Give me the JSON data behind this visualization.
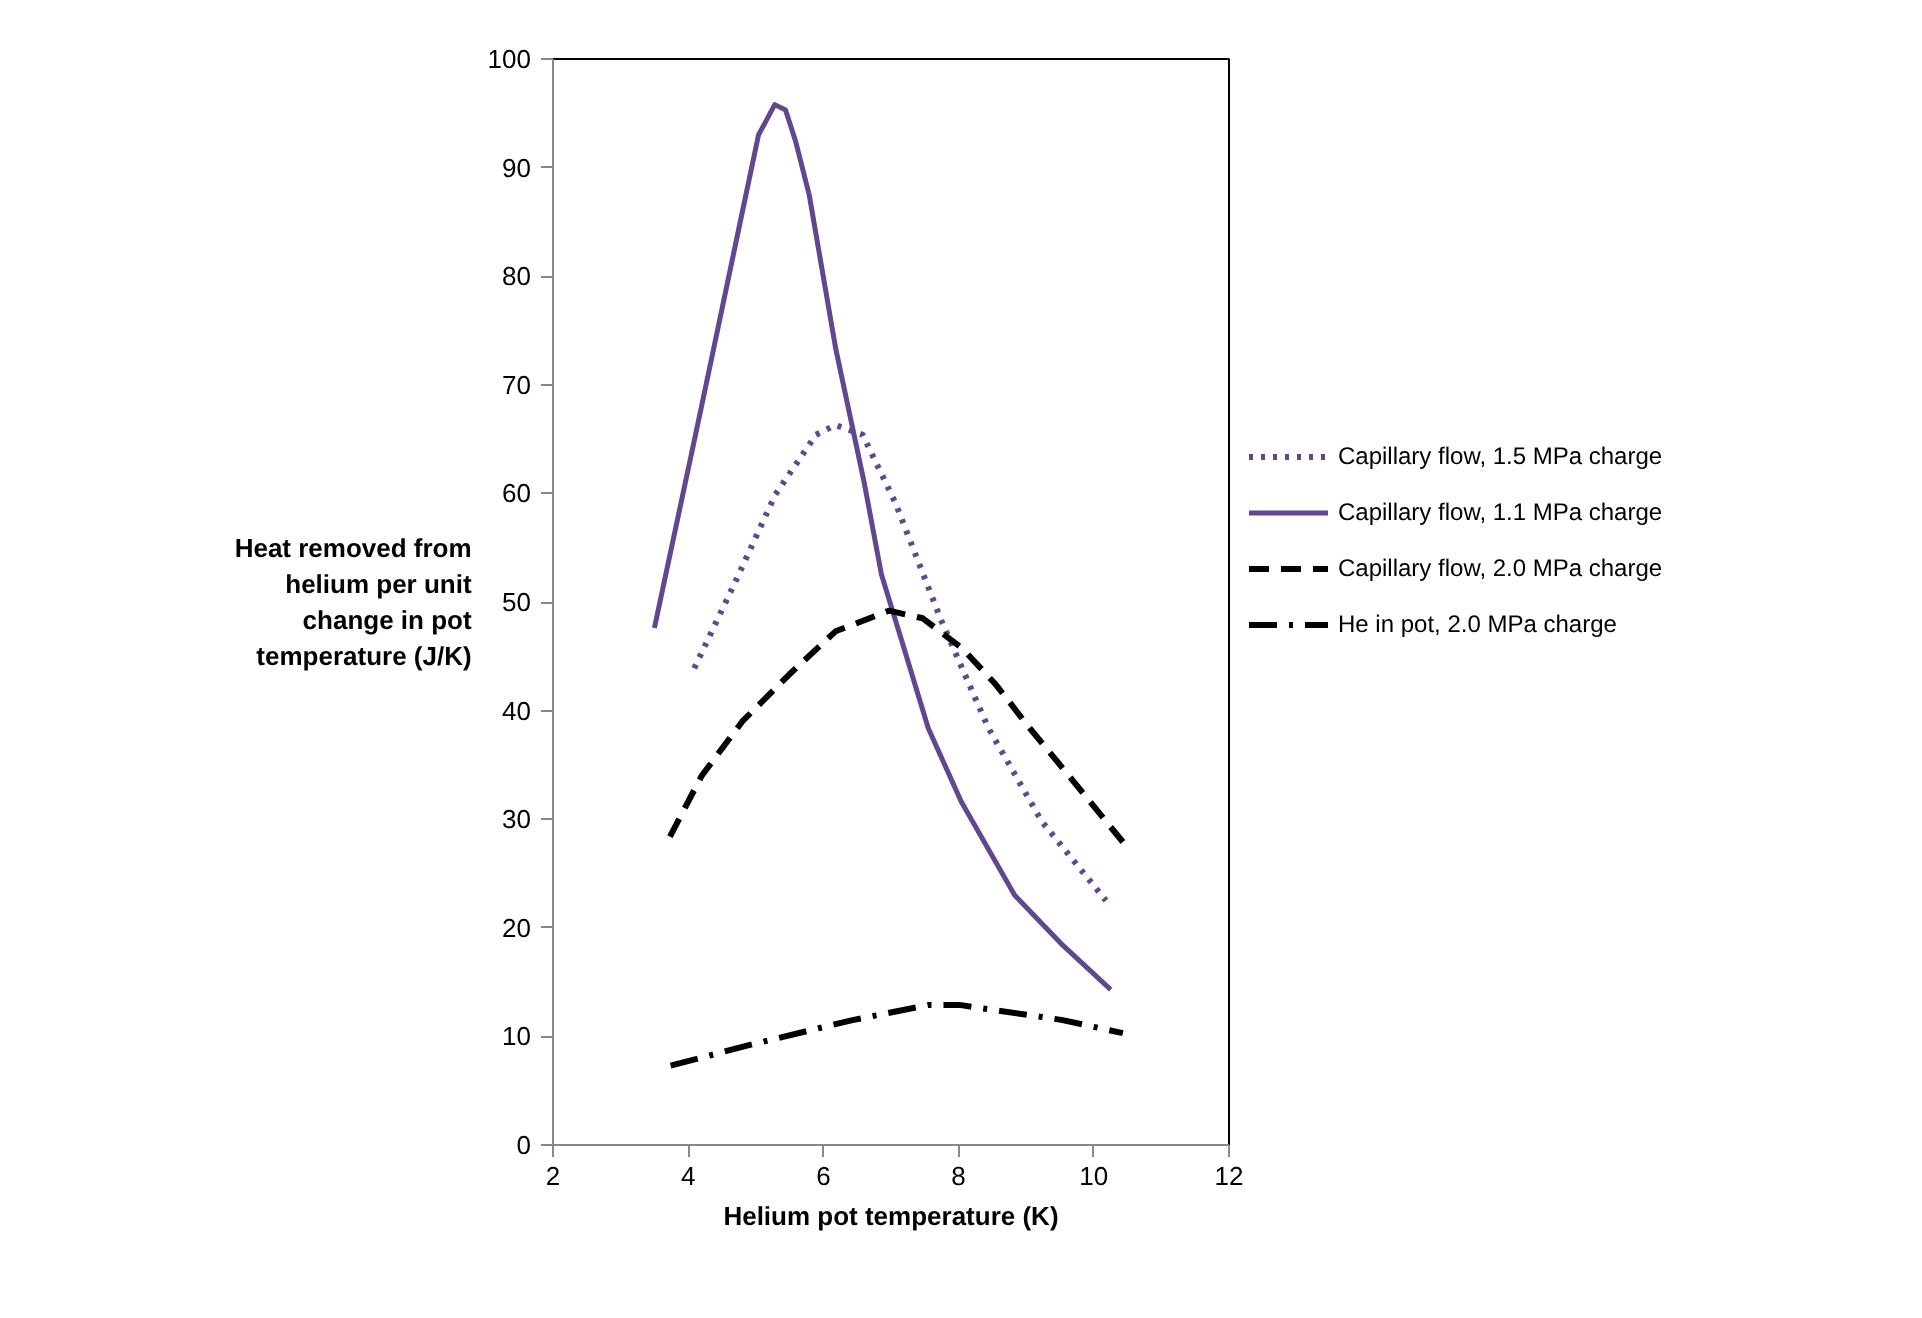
{
  "chart_data": {
    "type": "line",
    "xlabel": "Helium pot temperature (K)",
    "ylabel": "Heat removed from helium per unit change in pot temperature (J/K)",
    "xlim": [
      2,
      12
    ],
    "xticks": [
      2,
      4,
      6,
      8,
      10,
      12
    ],
    "ylim": [
      0,
      100
    ],
    "yticks": [
      0,
      10,
      20,
      30,
      40,
      50,
      60,
      70,
      80,
      90,
      100
    ],
    "grid": false,
    "legend": "right",
    "marker": "none",
    "series": [
      {
        "name": "Capillary flow, 1.5 MPa charge",
        "color": "#60478f",
        "line_style": "dotted",
        "x": [
          4.09,
          4.7,
          5.29,
          5.89,
          6.18,
          6.58,
          7.06,
          7.75,
          8.44,
          9.23,
          10.18
        ],
        "values": [
          43.9,
          51.9,
          59.9,
          65.4,
          66.3,
          65.4,
          59.2,
          48.2,
          38.4,
          29.8,
          22.5
        ]
      },
      {
        "name": "Capillary flow, 1.1 MPa charge",
        "color": "#60478f",
        "line_style": "solid",
        "x": [
          3.5,
          4.19,
          4.79,
          5.04,
          5.28,
          5.44,
          5.59,
          5.79,
          6.18,
          6.6,
          6.86,
          7.16,
          7.55,
          8.04,
          8.83,
          9.54,
          10.25
        ],
        "values": [
          47.6,
          67.8,
          85.6,
          93,
          95.8,
          95.3,
          92.4,
          87.5,
          73.4,
          61.1,
          52.5,
          46.4,
          38.4,
          31.6,
          23,
          18.4,
          14.3
        ]
      },
      {
        "name": "Capillary flow, 2.0 MPa charge",
        "color": "#000000",
        "line_style": "dashed",
        "x": [
          3.73,
          4.2,
          4.8,
          5.49,
          6.18,
          6.97,
          7.47,
          8.06,
          8.55,
          9.05,
          9.54,
          10.43
        ],
        "values": [
          28.4,
          34,
          39,
          43.3,
          47.3,
          49.2,
          48.5,
          45.7,
          42.4,
          38.4,
          34.7,
          27.9
        ]
      },
      {
        "name": "He in pot, 2.0 MPa charge",
        "color": "#000000",
        "line_style": "dashdot",
        "x": [
          3.74,
          4.9,
          6.43,
          7.56,
          8.01,
          9.54,
          10.43
        ],
        "values": [
          7.3,
          9.2,
          11.5,
          12.9,
          12.9,
          11.5,
          10.3
        ]
      }
    ]
  }
}
